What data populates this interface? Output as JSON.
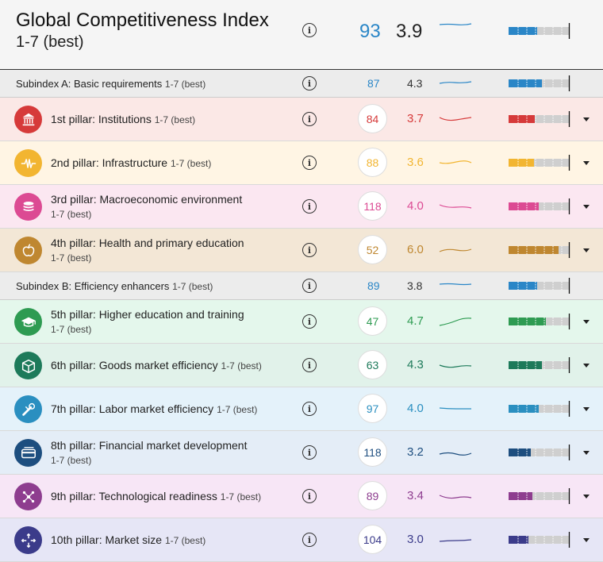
{
  "header": {
    "title": "Global Competitiveness Index",
    "subtitle": "1-7 (best)",
    "rank": "93",
    "score": "3.9",
    "color": "#2a86c7",
    "fill": 0.48
  },
  "rows": [
    {
      "type": "subindex",
      "label": "Subindex A: Basic requirements",
      "unit": "1-7 (best)",
      "rank": "87",
      "score": "4.3",
      "color": "#2a86c7",
      "fill": 0.55
    },
    {
      "type": "pillar",
      "label": "1st pillar: Institutions",
      "unit": "1-7 (best)",
      "rank": "84",
      "score": "3.7",
      "color": "#d63a3a",
      "bg": "#fbe8e6",
      "icon": "institutions-icon",
      "fill": 0.44,
      "lines": 1
    },
    {
      "type": "pillar",
      "label": "2nd pillar: Infrastructure",
      "unit": "1-7 (best)",
      "rank": "88",
      "score": "3.6",
      "color": "#f2b531",
      "bg": "#fff5e4",
      "icon": "infrastructure-icon",
      "fill": 0.42,
      "lines": 1
    },
    {
      "type": "pillar",
      "label": "3rd pillar: Macroeconomic environment",
      "unit": "1-7 (best)",
      "rank": "118",
      "score": "4.0",
      "color": "#dc4a93",
      "bg": "#fbe7f1",
      "icon": "macroeconomic-icon",
      "fill": 0.5,
      "lines": 2
    },
    {
      "type": "pillar",
      "label": "4th pillar: Health and primary education",
      "unit": "1-7 (best)",
      "rank": "52",
      "score": "6.0",
      "color": "#bf8730",
      "bg": "#f3e7d6",
      "icon": "health-icon",
      "fill": 0.83,
      "lines": 2
    },
    {
      "type": "subindex",
      "label": "Subindex B: Efficiency enhancers",
      "unit": "1-7 (best)",
      "rank": "89",
      "score": "3.8",
      "color": "#2a86c7",
      "fill": 0.47
    },
    {
      "type": "pillar",
      "label": "5th pillar: Higher education and training",
      "unit": "1-7 (best)",
      "rank": "47",
      "score": "4.7",
      "color": "#2e9b52",
      "bg": "#e4f7ec",
      "icon": "education-icon",
      "fill": 0.62,
      "lines": 2
    },
    {
      "type": "pillar",
      "label": "6th pillar: Goods market efficiency",
      "unit": "1-7 (best)",
      "rank": "63",
      "score": "4.3",
      "color": "#1d7a5a",
      "bg": "#e1f2ea",
      "icon": "goods-market-icon",
      "fill": 0.55,
      "lines": 1
    },
    {
      "type": "pillar",
      "label": "7th pillar: Labor market efficiency",
      "unit": "1-7 (best)",
      "rank": "97",
      "score": "4.0",
      "color": "#2a8fc0",
      "bg": "#e4f2fa",
      "icon": "labor-market-icon",
      "fill": 0.5,
      "lines": 1
    },
    {
      "type": "pillar",
      "label": "8th pillar: Financial market development",
      "unit": "1-7 (best)",
      "rank": "118",
      "score": "3.2",
      "color": "#1d4e7f",
      "bg": "#e4edf7",
      "icon": "financial-market-icon",
      "fill": 0.37,
      "lines": 2
    },
    {
      "type": "pillar",
      "label": "9th pillar: Technological readiness",
      "unit": "1-7 (best)",
      "rank": "89",
      "score": "3.4",
      "color": "#8e3d8f",
      "bg": "#f7e6f6",
      "icon": "technology-icon",
      "fill": 0.4,
      "lines": 1
    },
    {
      "type": "pillar",
      "label": "10th pillar: Market size",
      "unit": "1-7 (best)",
      "rank": "104",
      "score": "3.0",
      "color": "#3b3b8a",
      "bg": "#e6e6f6",
      "icon": "market-size-icon",
      "fill": 0.33,
      "lines": 1
    }
  ]
}
